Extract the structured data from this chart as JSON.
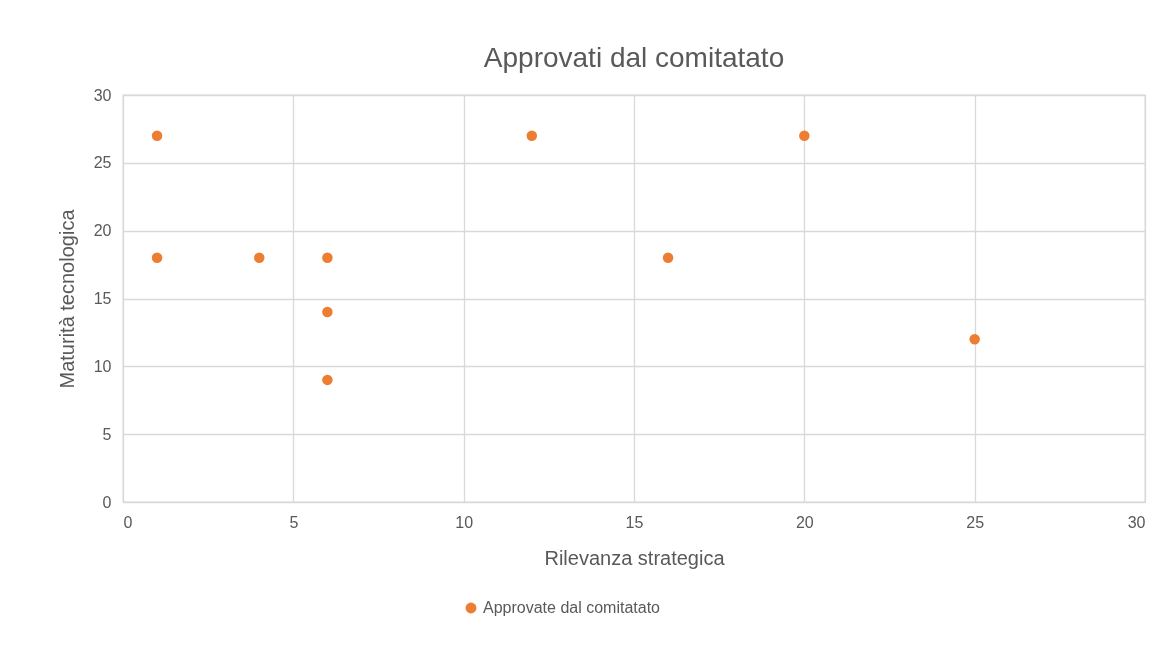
{
  "chart_data": {
    "type": "scatter",
    "title": "Approvati dal comitatato",
    "xlabel": "Rilevanza strategica",
    "ylabel": "Maturità tecnologica",
    "series": [
      {
        "name": "Approvate dal comitatato",
        "color": "#ed7d31",
        "x": [
          1,
          1,
          4,
          6,
          6,
          6,
          12,
          16,
          20,
          25
        ],
        "values": [
          27,
          18,
          18,
          18,
          14,
          9,
          27,
          18,
          27,
          12
        ]
      }
    ],
    "xlim": [
      0,
      30
    ],
    "xticks": [
      0,
      5,
      10,
      15,
      20,
      25,
      30
    ],
    "ylim": [
      0,
      30
    ],
    "yticks": [
      0,
      5,
      10,
      15,
      20,
      25,
      30
    ],
    "grid": true,
    "legend": "bottom",
    "marker": "circle"
  }
}
